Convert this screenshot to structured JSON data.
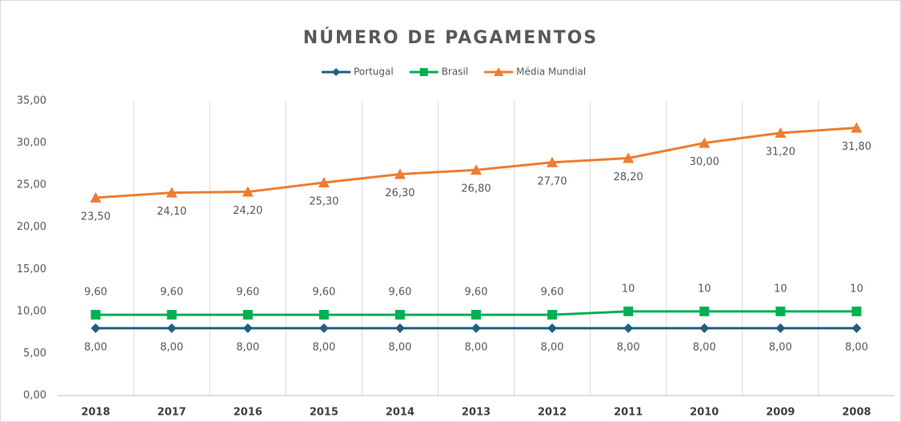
{
  "chart_data": {
    "type": "line",
    "title": "NÚMERO DE PAGAMENTOS",
    "categories": [
      "2018",
      "2017",
      "2016",
      "2015",
      "2014",
      "2013",
      "2012",
      "2011",
      "2010",
      "2009",
      "2008"
    ],
    "series": [
      {
        "name": "Portugal",
        "color": "#215f7e",
        "marker": "diamond",
        "values": [
          8,
          8,
          8,
          8,
          8,
          8,
          8,
          8,
          8,
          8,
          8
        ],
        "value_labels": [
          "8,00",
          "8,00",
          "8,00",
          "8,00",
          "8,00",
          "8,00",
          "8,00",
          "8,00",
          "8,00",
          "8,00",
          "8,00"
        ]
      },
      {
        "name": "Brasil",
        "color": "#00b050",
        "marker": "square",
        "values": [
          9.6,
          9.6,
          9.6,
          9.6,
          9.6,
          9.6,
          9.6,
          10,
          10,
          10,
          10
        ],
        "value_labels": [
          "9,60",
          "9,60",
          "9,60",
          "9,60",
          "9,60",
          "9,60",
          "9,60",
          "10",
          "10",
          "10",
          "10"
        ]
      },
      {
        "name": "Média Mundial",
        "color": "#ed7d31",
        "marker": "triangle",
        "values": [
          23.5,
          24.1,
          24.2,
          25.3,
          26.3,
          26.8,
          27.7,
          28.2,
          30,
          31.2,
          31.8
        ],
        "value_labels": [
          "23,50",
          "24,10",
          "24,20",
          "25,30",
          "26,30",
          "26,80",
          "27,70",
          "28,20",
          "30,00",
          "31,20",
          "31,80"
        ]
      }
    ],
    "ylim": [
      0,
      35
    ],
    "yticks": [
      {
        "value": 0,
        "label": "0,00"
      },
      {
        "value": 5,
        "label": "5,00"
      },
      {
        "value": 10,
        "label": "10,00"
      },
      {
        "value": 15,
        "label": "15,00"
      },
      {
        "value": 20,
        "label": "20,00"
      },
      {
        "value": 25,
        "label": "25,00"
      },
      {
        "value": 30,
        "label": "30,00"
      },
      {
        "value": 35,
        "label": "35,00"
      }
    ],
    "legend": "top"
  }
}
